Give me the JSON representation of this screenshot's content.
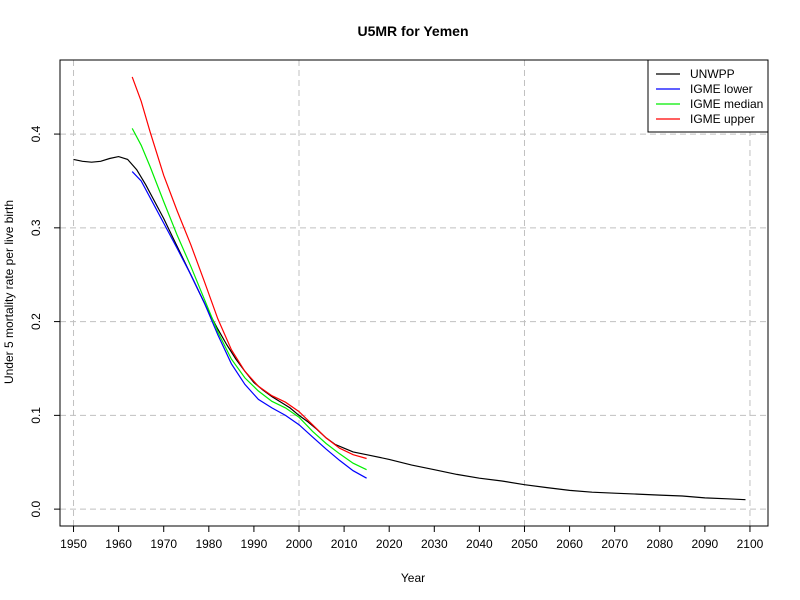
{
  "chart_data": {
    "type": "line",
    "title": "U5MR for Yemen",
    "xlabel": "Year",
    "ylabel": "Under 5 mortality rate per live birth",
    "xlim": [
      1947,
      2104
    ],
    "ylim": [
      -0.018,
      0.479
    ],
    "xticks": [
      1950,
      1960,
      1970,
      1980,
      1990,
      2000,
      2010,
      2020,
      2030,
      2040,
      2050,
      2060,
      2070,
      2080,
      2090,
      2100
    ],
    "yticks": [
      0.0,
      0.1,
      0.2,
      0.3,
      0.4
    ],
    "ytick_labels": [
      "0.0",
      "0.1",
      "0.2",
      "0.3",
      "0.4"
    ],
    "grid": true,
    "legend_position": "top-right",
    "series": [
      {
        "name": "UNWPP",
        "color": "#000000",
        "x": [
          1950,
          1952,
          1954,
          1956,
          1958,
          1960,
          1962,
          1964,
          1966,
          1968,
          1970,
          1972,
          1974,
          1976,
          1978,
          1980,
          1982,
          1984,
          1986,
          1988,
          1990,
          1992,
          1994,
          1996,
          1998,
          2000,
          2002,
          2004,
          2006,
          2008,
          2010,
          2012,
          2015,
          2020,
          2025,
          2030,
          2035,
          2040,
          2045,
          2050,
          2055,
          2060,
          2065,
          2070,
          2075,
          2080,
          2085,
          2090,
          2095,
          2099
        ],
        "y": [
          0.373,
          0.371,
          0.37,
          0.371,
          0.374,
          0.376,
          0.373,
          0.362,
          0.346,
          0.328,
          0.31,
          0.29,
          0.27,
          0.25,
          0.23,
          0.21,
          0.192,
          0.175,
          0.16,
          0.147,
          0.135,
          0.127,
          0.12,
          0.114,
          0.108,
          0.1,
          0.093,
          0.085,
          0.076,
          0.069,
          0.065,
          0.061,
          0.058,
          0.053,
          0.047,
          0.042,
          0.037,
          0.033,
          0.03,
          0.026,
          0.023,
          0.02,
          0.018,
          0.017,
          0.016,
          0.015,
          0.014,
          0.012,
          0.011,
          0.01
        ]
      },
      {
        "name": "IGME lower",
        "color": "#0000ff",
        "x": [
          1963,
          1965,
          1967,
          1970,
          1973,
          1976,
          1979,
          1982,
          1985,
          1988,
          1991,
          1994,
          1997,
          2000,
          2003,
          2006,
          2009,
          2012,
          2015
        ],
        "y": [
          0.36,
          0.35,
          0.332,
          0.305,
          0.278,
          0.25,
          0.22,
          0.186,
          0.155,
          0.133,
          0.117,
          0.108,
          0.1,
          0.09,
          0.077,
          0.064,
          0.052,
          0.041,
          0.033
        ]
      },
      {
        "name": "IGME median",
        "color": "#00ee00",
        "x": [
          1963,
          1965,
          1967,
          1970,
          1973,
          1976,
          1979,
          1982,
          1985,
          1988,
          1991,
          1994,
          1997,
          2000,
          2003,
          2006,
          2009,
          2012,
          2015
        ],
        "y": [
          0.406,
          0.388,
          0.365,
          0.328,
          0.292,
          0.259,
          0.224,
          0.189,
          0.16,
          0.14,
          0.126,
          0.115,
          0.108,
          0.098,
          0.083,
          0.07,
          0.059,
          0.049,
          0.042
        ]
      },
      {
        "name": "IGME upper",
        "color": "#ff0000",
        "x": [
          1963,
          1965,
          1967,
          1970,
          1973,
          1976,
          1979,
          1982,
          1985,
          1988,
          1991,
          1994,
          1997,
          2000,
          2003,
          2006,
          2009,
          2012,
          2015
        ],
        "y": [
          0.461,
          0.435,
          0.402,
          0.356,
          0.318,
          0.282,
          0.243,
          0.203,
          0.17,
          0.147,
          0.131,
          0.121,
          0.114,
          0.104,
          0.09,
          0.076,
          0.065,
          0.058,
          0.054
        ]
      }
    ]
  }
}
